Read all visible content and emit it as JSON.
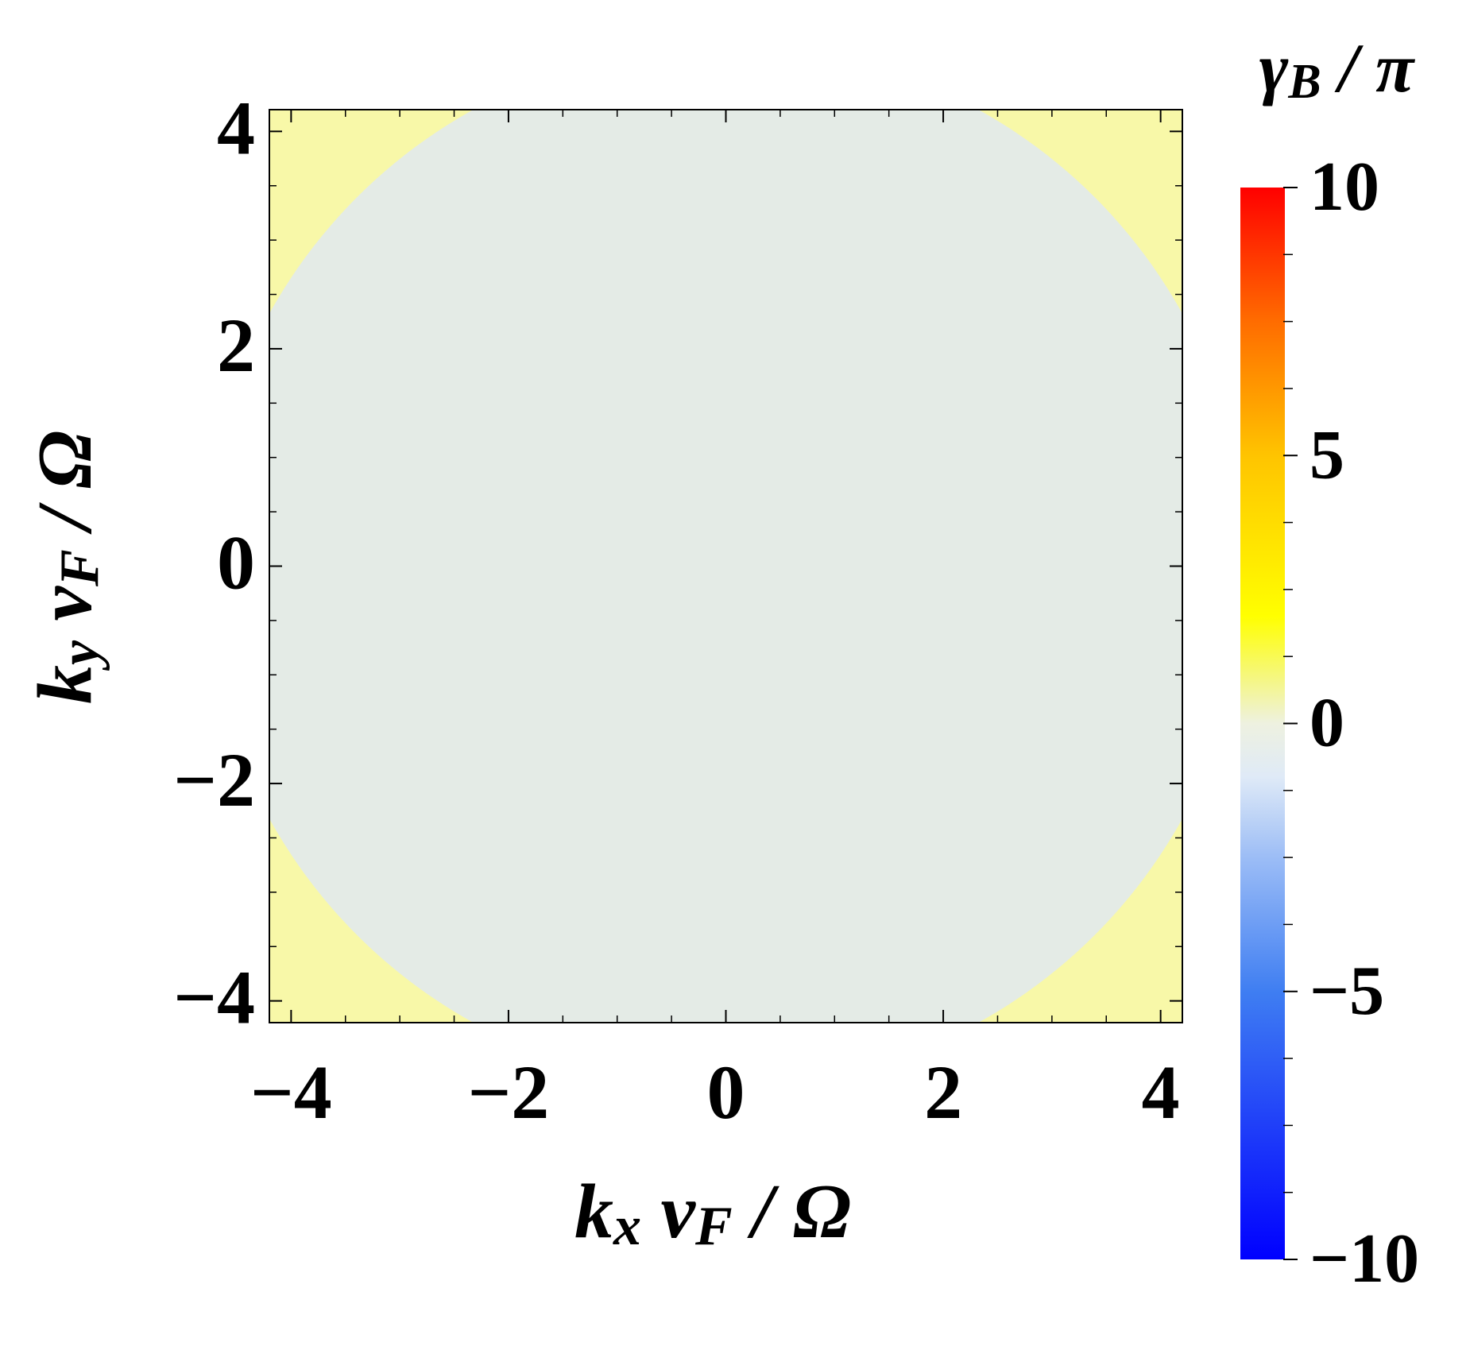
{
  "chart_data": {
    "type": "contour",
    "xlabel": [
      "k",
      "x",
      " v",
      "F",
      " / Ω"
    ],
    "ylabel": [
      "k",
      "y",
      " v",
      "F",
      " / Ω"
    ],
    "colorbar_title": [
      "γ",
      "B",
      " / π"
    ],
    "xlim": [
      -4.2,
      4.2
    ],
    "ylim": [
      -4.2,
      4.2
    ],
    "xticks": [
      {
        "value": -4,
        "label": "−4"
      },
      {
        "value": -2,
        "label": "−2"
      },
      0,
      2,
      4
    ],
    "yticks": [
      {
        "value": -4,
        "label": "−4"
      },
      {
        "value": -2,
        "label": "−2"
      },
      0,
      2,
      4
    ],
    "minor_ticks": true,
    "regions": [
      {
        "value": 1,
        "color": "#f8f8a8"
      },
      {
        "value": 0,
        "color": "#e4ebe6",
        "radius": 4.8
      }
    ],
    "colorbar_lim": [
      -10,
      10
    ],
    "colorbar_ticks": [
      {
        "value": -10,
        "label": "−10"
      },
      {
        "value": -5,
        "label": "−5"
      },
      0,
      5,
      10
    ],
    "colorscale": [
      [
        -10,
        "#0000ff"
      ],
      [
        -5,
        "#3f7ef2"
      ],
      [
        -2.5,
        "#9cbdf6"
      ],
      [
        -1,
        "#dfeaf7"
      ],
      [
        0,
        "#eef1e0"
      ],
      [
        2,
        "#ffff00"
      ],
      [
        5,
        "#ffc400"
      ],
      [
        7.5,
        "#ff6c00"
      ],
      [
        10,
        "#ff0000"
      ]
    ]
  }
}
